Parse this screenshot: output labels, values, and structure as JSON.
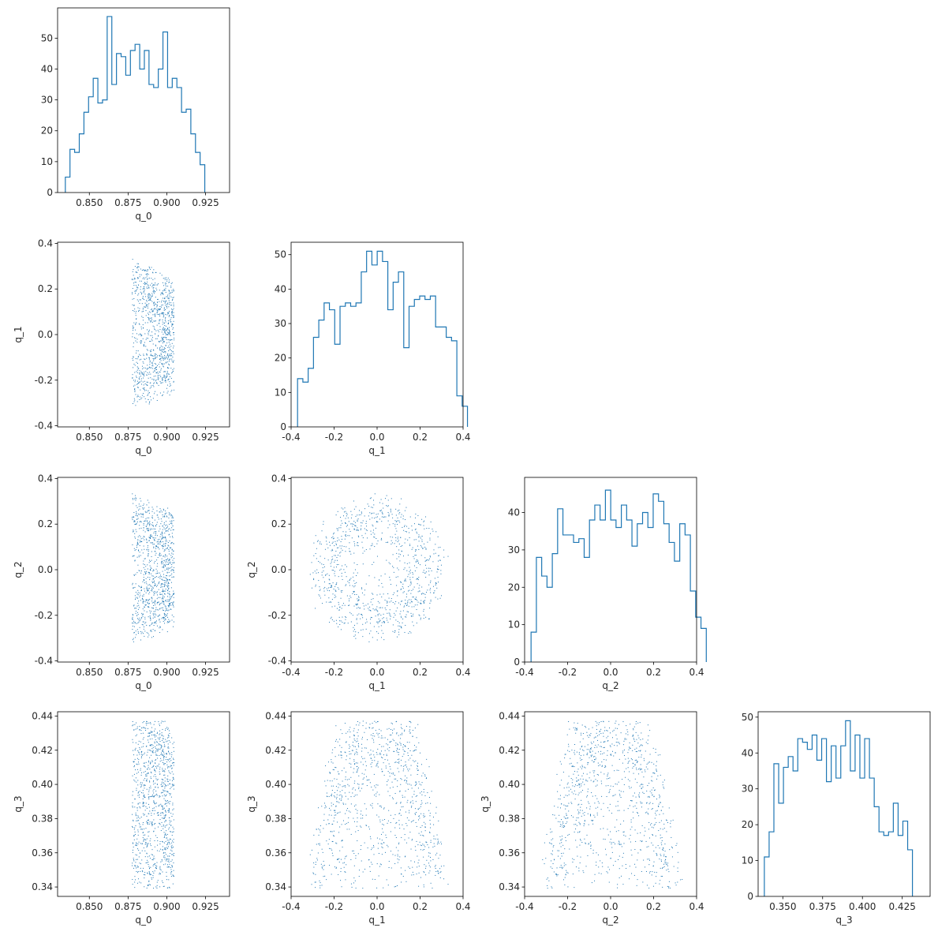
{
  "chart_data": [
    {
      "type": "histogram",
      "row": 0,
      "col": 0,
      "xlabel": "q_0",
      "ylabel": "",
      "xlim": [
        0.8295,
        0.9405
      ],
      "ylim": [
        0,
        59.8
      ],
      "xticks": [
        0.85,
        0.875,
        0.9,
        0.925
      ],
      "yticks": [
        0,
        10,
        20,
        30,
        40,
        50
      ],
      "bin_start": 0.8345,
      "bin_width": 0.003,
      "counts": [
        5,
        14,
        13,
        19,
        26,
        31,
        37,
        29,
        30,
        57,
        35,
        45,
        44,
        38,
        46,
        48,
        40,
        46,
        35,
        34,
        40,
        52,
        34,
        37,
        34,
        26,
        27,
        19,
        13,
        9
      ],
      "color": "#1f77b4"
    },
    {
      "type": "scatter",
      "row": 1,
      "col": 0,
      "xlabel": "q_0",
      "ylabel": "q_1",
      "xlim": [
        0.8295,
        0.9405
      ],
      "ylim": [
        -0.405,
        0.405
      ],
      "xticks": [
        0.85,
        0.875,
        0.9,
        0.925
      ],
      "yticks": [
        -0.4,
        -0.2,
        0.0,
        0.2,
        0.4
      ],
      "color": "#1f77b4",
      "points": []
    },
    {
      "type": "histogram",
      "row": 1,
      "col": 1,
      "xlabel": "q_1",
      "ylabel": "",
      "xlim": [
        -0.4,
        0.4
      ],
      "ylim": [
        0,
        53.6
      ],
      "xticks": [
        -0.4,
        -0.2,
        0.0,
        0.2,
        0.4
      ],
      "yticks": [
        0,
        10,
        20,
        30,
        40,
        50
      ],
      "bin_start": -0.37,
      "bin_width": 0.0247,
      "counts": [
        14,
        13,
        17,
        26,
        31,
        36,
        34,
        24,
        35,
        36,
        35,
        36,
        45,
        51,
        47,
        51,
        48,
        34,
        42,
        45,
        23,
        35,
        37,
        38,
        37,
        38,
        29,
        29,
        26,
        25,
        9,
        6
      ],
      "color": "#1f77b4"
    },
    {
      "type": "scatter",
      "row": 2,
      "col": 0,
      "xlabel": "q_0",
      "ylabel": "q_2",
      "xlim": [
        0.8295,
        0.9405
      ],
      "ylim": [
        -0.405,
        0.405
      ],
      "xticks": [
        0.85,
        0.875,
        0.9,
        0.925
      ],
      "yticks": [
        -0.4,
        -0.2,
        0.0,
        0.2,
        0.4
      ],
      "color": "#1f77b4",
      "points": []
    },
    {
      "type": "scatter",
      "row": 2,
      "col": 1,
      "xlabel": "q_1",
      "ylabel": "q_2",
      "xlim": [
        -0.4,
        0.4
      ],
      "ylim": [
        -0.405,
        0.405
      ],
      "xticks": [
        -0.4,
        -0.2,
        0.0,
        0.2,
        0.4
      ],
      "yticks": [
        -0.4,
        -0.2,
        0.0,
        0.2,
        0.4
      ],
      "color": "#1f77b4",
      "points": []
    },
    {
      "type": "histogram",
      "row": 2,
      "col": 2,
      "xlabel": "q_2",
      "ylabel": "",
      "xlim": [
        -0.4,
        0.4
      ],
      "ylim": [
        0,
        49.4
      ],
      "xticks": [
        -0.4,
        -0.2,
        0.0,
        0.2,
        0.4
      ],
      "yticks": [
        0,
        10,
        20,
        30,
        40
      ],
      "bin_start": -0.37,
      "bin_width": 0.0247,
      "counts": [
        8,
        28,
        23,
        20,
        29,
        41,
        34,
        34,
        32,
        33,
        28,
        38,
        42,
        38,
        46,
        38,
        36,
        42,
        38,
        31,
        37,
        40,
        36,
        45,
        43,
        37,
        32,
        27,
        37,
        34,
        19,
        12,
        9
      ],
      "color": "#1f77b4"
    },
    {
      "type": "scatter",
      "row": 3,
      "col": 0,
      "xlabel": "q_0",
      "ylabel": "q_3",
      "xlim": [
        0.8295,
        0.9405
      ],
      "ylim": [
        0.3345,
        0.4425
      ],
      "xticks": [
        0.85,
        0.875,
        0.9,
        0.925
      ],
      "yticks": [
        0.34,
        0.36,
        0.38,
        0.4,
        0.42,
        0.44
      ],
      "color": "#1f77b4",
      "points": []
    },
    {
      "type": "scatter",
      "row": 3,
      "col": 1,
      "xlabel": "q_1",
      "ylabel": "q_3",
      "xlim": [
        -0.4,
        0.4
      ],
      "ylim": [
        0.3345,
        0.4425
      ],
      "xticks": [
        -0.4,
        -0.2,
        0.0,
        0.2,
        0.4
      ],
      "yticks": [
        0.34,
        0.36,
        0.38,
        0.4,
        0.42,
        0.44
      ],
      "color": "#1f77b4",
      "points": []
    },
    {
      "type": "scatter",
      "row": 3,
      "col": 2,
      "xlabel": "q_2",
      "ylabel": "q_3",
      "xlim": [
        -0.4,
        0.4
      ],
      "ylim": [
        0.3345,
        0.4425
      ],
      "xticks": [
        -0.4,
        -0.2,
        0.0,
        0.2,
        0.4
      ],
      "yticks": [
        0.34,
        0.36,
        0.38,
        0.4,
        0.42,
        0.44
      ],
      "color": "#1f77b4",
      "points": []
    },
    {
      "type": "histogram",
      "row": 3,
      "col": 3,
      "xlabel": "q_3",
      "ylabel": "",
      "xlim": [
        0.3345,
        0.4425
      ],
      "ylim": [
        0,
        51.5
      ],
      "xticks": [
        0.35,
        0.375,
        0.4,
        0.425
      ],
      "yticks": [
        0,
        10,
        20,
        30,
        40,
        50
      ],
      "bin_start": 0.3384,
      "bin_width": 0.003,
      "counts": [
        11,
        18,
        37,
        26,
        36,
        39,
        35,
        44,
        43,
        41,
        45,
        38,
        44,
        32,
        42,
        33,
        42,
        49,
        35,
        45,
        33,
        44,
        33,
        25,
        18,
        17,
        18,
        26,
        17,
        21,
        13
      ],
      "color": "#1f77b4"
    }
  ]
}
